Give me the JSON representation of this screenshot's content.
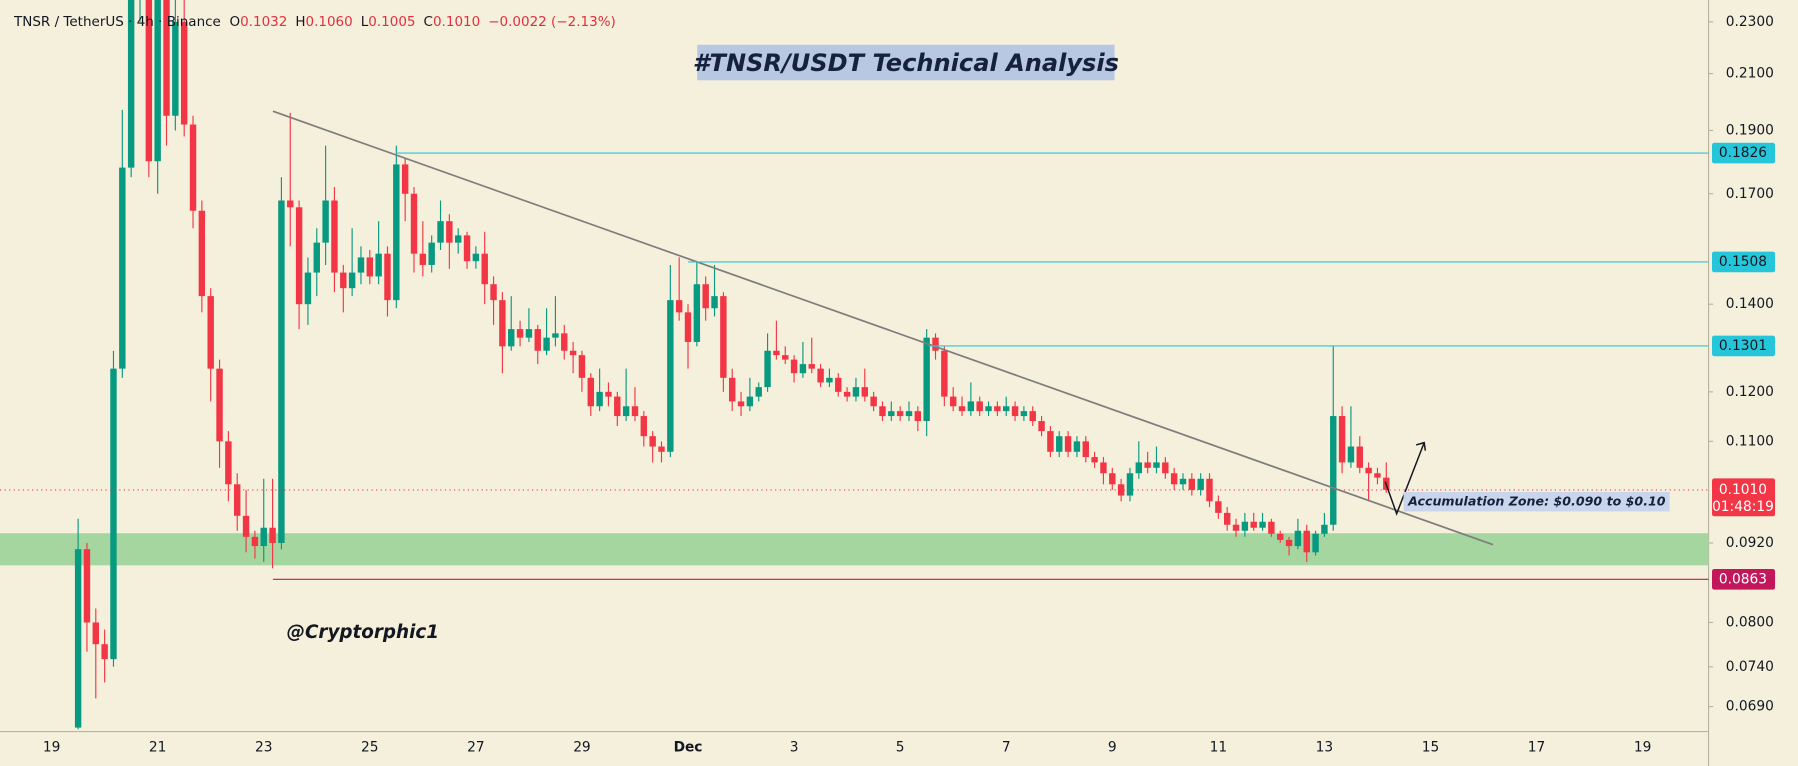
{
  "header": {
    "symbol": "TNSR / TetherUS · 4h · Binance",
    "ohlc": [
      {
        "label": "O",
        "value": "0.1032"
      },
      {
        "label": "H",
        "value": "0.1060"
      },
      {
        "label": "L",
        "value": "0.1005"
      },
      {
        "label": "C",
        "value": "0.1010"
      }
    ],
    "change": "−0.0022 (−2.13%)"
  },
  "chart_data": {
    "type": "candlestick",
    "title": "#TNSR/USDT Technical Analysis",
    "watermark": "@Cryptorphic1",
    "annotation": "Accumulation Zone: $0.090 to $0.10",
    "log_scale": true,
    "grid": false,
    "up_color": "#089981",
    "down_color": "#f23645",
    "ylim": [
      0.0663,
      0.239
    ],
    "yticks": [
      {
        "value": 0.23,
        "label": "0.2300"
      },
      {
        "value": 0.21,
        "label": "0.2100"
      },
      {
        "value": 0.19,
        "label": "0.1900"
      },
      {
        "value": 0.17,
        "label": "0.1700"
      },
      {
        "value": 0.14,
        "label": "0.1400"
      },
      {
        "value": 0.12,
        "label": "0.1200"
      },
      {
        "value": 0.11,
        "label": "0.1100"
      },
      {
        "value": 0.092,
        "label": "0.0920"
      },
      {
        "value": 0.08,
        "label": "0.0800"
      },
      {
        "value": 0.074,
        "label": "0.0740"
      },
      {
        "value": 0.069,
        "label": "0.0690"
      }
    ],
    "levels": [
      {
        "value": 0.1826,
        "color": "#26c6da"
      },
      {
        "value": 0.1508,
        "color": "#26c6da"
      },
      {
        "value": 0.1301,
        "color": "#26c6da"
      },
      {
        "value": 0.0863,
        "color": "#c2185b"
      }
    ],
    "last_price": {
      "value": 0.101,
      "label": "0.1010",
      "countdown": "01:48:19",
      "color": "#f23645"
    },
    "categories": [
      "19",
      null,
      null,
      null,
      null,
      null,
      null,
      null,
      null,
      null,
      null,
      null,
      "21",
      null,
      null,
      null,
      null,
      null,
      null,
      null,
      null,
      null,
      null,
      null,
      "23",
      null,
      null,
      null,
      null,
      null,
      null,
      null,
      null,
      null,
      null,
      null,
      "25",
      null,
      null,
      null,
      null,
      null,
      null,
      null,
      null,
      null,
      null,
      null,
      "27",
      null,
      null,
      null,
      null,
      null,
      null,
      null,
      null,
      null,
      null,
      null,
      "29",
      null,
      null,
      null,
      null,
      null,
      null,
      null,
      null,
      null,
      null,
      null,
      "Dec",
      null,
      null,
      null,
      null,
      null,
      null,
      null,
      null,
      null,
      null,
      null,
      "3",
      null,
      null,
      null,
      null,
      null,
      null,
      null,
      null,
      null,
      null,
      null,
      "5",
      null,
      null,
      null,
      null,
      null,
      null,
      null,
      null,
      null,
      null,
      null,
      "7",
      null,
      null,
      null,
      null,
      null,
      null,
      null,
      null,
      null,
      null,
      null,
      "9",
      null,
      null,
      null,
      null,
      null,
      null,
      null,
      null,
      null,
      null,
      null,
      "11",
      null,
      null,
      null,
      null,
      null,
      null,
      null,
      null,
      null,
      null,
      null,
      "13",
      null,
      null,
      null,
      null,
      null,
      null,
      null,
      null,
      null,
      null,
      null,
      "15",
      null,
      null,
      null,
      null,
      null,
      null,
      null,
      null,
      null,
      null,
      null,
      "17",
      null,
      null,
      null,
      null,
      null,
      null,
      null,
      null,
      null,
      null,
      null,
      "19",
      null,
      null,
      null,
      null,
      null,
      null
    ],
    "candles": [
      null,
      null,
      null,
      [
        0.0665,
        0.096,
        0.066,
        0.091
      ],
      [
        0.091,
        0.092,
        0.076,
        0.08
      ],
      [
        0.08,
        0.082,
        0.07,
        0.077
      ],
      [
        0.077,
        0.079,
        0.072,
        0.075
      ],
      [
        0.075,
        0.129,
        0.074,
        0.125
      ],
      [
        0.125,
        0.197,
        0.123,
        0.178
      ],
      [
        0.178,
        0.255,
        0.175,
        0.245
      ],
      [
        0.245,
        0.28,
        0.23,
        0.26
      ],
      [
        0.26,
        0.265,
        0.175,
        0.18
      ],
      [
        0.18,
        0.27,
        0.17,
        0.245
      ],
      [
        0.245,
        0.25,
        0.185,
        0.195
      ],
      [
        0.195,
        0.245,
        0.19,
        0.23
      ],
      [
        0.23,
        0.245,
        0.188,
        0.192
      ],
      [
        0.192,
        0.195,
        0.16,
        0.165
      ],
      [
        0.165,
        0.168,
        0.138,
        0.142
      ],
      [
        0.142,
        0.144,
        0.118,
        0.125
      ],
      [
        0.125,
        0.127,
        0.105,
        0.11
      ],
      [
        0.11,
        0.112,
        0.099,
        0.102
      ],
      [
        0.102,
        0.104,
        0.094,
        0.0965
      ],
      [
        0.0965,
        0.101,
        0.0905,
        0.093
      ],
      [
        0.093,
        0.094,
        0.0895,
        0.0915
      ],
      [
        0.0915,
        0.103,
        0.089,
        0.0945
      ],
      [
        0.0945,
        0.103,
        0.088,
        0.092
      ],
      [
        0.092,
        0.175,
        0.091,
        0.168
      ],
      [
        0.168,
        0.196,
        0.155,
        0.166
      ],
      [
        0.166,
        0.168,
        0.134,
        0.14
      ],
      [
        0.14,
        0.152,
        0.135,
        0.148
      ],
      [
        0.148,
        0.16,
        0.142,
        0.156
      ],
      [
        0.156,
        0.185,
        0.15,
        0.168
      ],
      [
        0.168,
        0.172,
        0.143,
        0.148
      ],
      [
        0.148,
        0.15,
        0.138,
        0.144
      ],
      [
        0.144,
        0.16,
        0.142,
        0.148
      ],
      [
        0.148,
        0.155,
        0.145,
        0.152
      ],
      [
        0.152,
        0.154,
        0.145,
        0.147
      ],
      [
        0.147,
        0.162,
        0.145,
        0.153
      ],
      [
        0.153,
        0.155,
        0.137,
        0.141
      ],
      [
        0.141,
        0.185,
        0.139,
        0.179
      ],
      [
        0.179,
        0.181,
        0.162,
        0.17
      ],
      [
        0.17,
        0.172,
        0.148,
        0.153
      ],
      [
        0.153,
        0.162,
        0.147,
        0.15
      ],
      [
        0.15,
        0.158,
        0.148,
        0.156
      ],
      [
        0.156,
        0.168,
        0.154,
        0.162
      ],
      [
        0.162,
        0.164,
        0.149,
        0.156
      ],
      [
        0.156,
        0.16,
        0.153,
        0.158
      ],
      [
        0.158,
        0.159,
        0.149,
        0.151
      ],
      [
        0.151,
        0.155,
        0.149,
        0.153
      ],
      [
        0.153,
        0.159,
        0.14,
        0.145
      ],
      [
        0.145,
        0.147,
        0.135,
        0.141
      ],
      [
        0.141,
        0.143,
        0.124,
        0.13
      ],
      [
        0.13,
        0.142,
        0.129,
        0.134
      ],
      [
        0.134,
        0.136,
        0.13,
        0.132
      ],
      [
        0.132,
        0.139,
        0.131,
        0.134
      ],
      [
        0.134,
        0.135,
        0.126,
        0.129
      ],
      [
        0.129,
        0.139,
        0.128,
        0.132
      ],
      [
        0.132,
        0.142,
        0.13,
        0.133
      ],
      [
        0.133,
        0.135,
        0.127,
        0.129
      ],
      [
        0.129,
        0.131,
        0.124,
        0.128
      ],
      [
        0.128,
        0.129,
        0.12,
        0.123
      ],
      [
        0.123,
        0.124,
        0.115,
        0.117
      ],
      [
        0.117,
        0.125,
        0.116,
        0.12
      ],
      [
        0.12,
        0.122,
        0.117,
        0.119
      ],
      [
        0.119,
        0.12,
        0.113,
        0.115
      ],
      [
        0.115,
        0.125,
        0.114,
        0.117
      ],
      [
        0.117,
        0.121,
        0.114,
        0.115
      ],
      [
        0.115,
        0.116,
        0.109,
        0.111
      ],
      [
        0.111,
        0.112,
        0.106,
        0.109
      ],
      [
        0.109,
        0.11,
        0.106,
        0.108
      ],
      [
        0.108,
        0.15,
        0.107,
        0.141
      ],
      [
        0.141,
        0.152,
        0.136,
        0.138
      ],
      [
        0.138,
        0.14,
        0.125,
        0.131
      ],
      [
        0.131,
        0.151,
        0.13,
        0.145
      ],
      [
        0.145,
        0.147,
        0.136,
        0.139
      ],
      [
        0.139,
        0.15,
        0.137,
        0.142
      ],
      [
        0.142,
        0.143,
        0.12,
        0.123
      ],
      [
        0.123,
        0.125,
        0.116,
        0.118
      ],
      [
        0.118,
        0.12,
        0.115,
        0.117
      ],
      [
        0.117,
        0.123,
        0.116,
        0.119
      ],
      [
        0.119,
        0.122,
        0.118,
        0.121
      ],
      [
        0.121,
        0.133,
        0.12,
        0.129
      ],
      [
        0.129,
        0.136,
        0.127,
        0.128
      ],
      [
        0.128,
        0.13,
        0.126,
        0.127
      ],
      [
        0.127,
        0.128,
        0.122,
        0.124
      ],
      [
        0.124,
        0.131,
        0.123,
        0.126
      ],
      [
        0.126,
        0.132,
        0.124,
        0.125
      ],
      [
        0.125,
        0.126,
        0.121,
        0.122
      ],
      [
        0.122,
        0.125,
        0.121,
        0.123
      ],
      [
        0.123,
        0.124,
        0.119,
        0.12
      ],
      [
        0.12,
        0.121,
        0.118,
        0.119
      ],
      [
        0.119,
        0.123,
        0.118,
        0.121
      ],
      [
        0.121,
        0.125,
        0.118,
        0.119
      ],
      [
        0.119,
        0.12,
        0.116,
        0.117
      ],
      [
        0.117,
        0.118,
        0.114,
        0.115
      ],
      [
        0.115,
        0.118,
        0.114,
        0.116
      ],
      [
        0.116,
        0.117,
        0.114,
        0.115
      ],
      [
        0.115,
        0.118,
        0.114,
        0.116
      ],
      [
        0.116,
        0.117,
        0.112,
        0.114
      ],
      [
        0.114,
        0.134,
        0.111,
        0.132
      ],
      [
        0.132,
        0.133,
        0.127,
        0.129
      ],
      [
        0.129,
        0.13,
        0.117,
        0.119
      ],
      [
        0.119,
        0.121,
        0.116,
        0.117
      ],
      [
        0.117,
        0.119,
        0.115,
        0.116
      ],
      [
        0.116,
        0.122,
        0.115,
        0.118
      ],
      [
        0.118,
        0.119,
        0.115,
        0.116
      ],
      [
        0.116,
        0.118,
        0.115,
        0.117
      ],
      [
        0.117,
        0.118,
        0.115,
        0.116
      ],
      [
        0.116,
        0.119,
        0.115,
        0.117
      ],
      [
        0.117,
        0.118,
        0.114,
        0.115
      ],
      [
        0.115,
        0.117,
        0.114,
        0.116
      ],
      [
        0.116,
        0.117,
        0.113,
        0.114
      ],
      [
        0.114,
        0.115,
        0.111,
        0.112
      ],
      [
        0.112,
        0.113,
        0.107,
        0.108
      ],
      [
        0.108,
        0.112,
        0.107,
        0.111
      ],
      [
        0.111,
        0.112,
        0.107,
        0.108
      ],
      [
        0.108,
        0.111,
        0.107,
        0.11
      ],
      [
        0.11,
        0.111,
        0.106,
        0.107
      ],
      [
        0.107,
        0.108,
        0.105,
        0.106
      ],
      [
        0.106,
        0.107,
        0.102,
        0.104
      ],
      [
        0.104,
        0.105,
        0.101,
        0.102
      ],
      [
        0.102,
        0.103,
        0.099,
        0.1
      ],
      [
        0.1,
        0.105,
        0.099,
        0.104
      ],
      [
        0.104,
        0.11,
        0.103,
        0.106
      ],
      [
        0.106,
        0.108,
        0.104,
        0.105
      ],
      [
        0.105,
        0.109,
        0.104,
        0.106
      ],
      [
        0.106,
        0.107,
        0.103,
        0.104
      ],
      [
        0.104,
        0.105,
        0.101,
        0.102
      ],
      [
        0.102,
        0.104,
        0.101,
        0.103
      ],
      [
        0.103,
        0.104,
        0.1,
        0.101
      ],
      [
        0.101,
        0.104,
        0.1,
        0.103
      ],
      [
        0.103,
        0.104,
        0.098,
        0.099
      ],
      [
        0.099,
        0.1,
        0.096,
        0.097
      ],
      [
        0.097,
        0.098,
        0.094,
        0.095
      ],
      [
        0.095,
        0.096,
        0.093,
        0.094
      ],
      [
        0.094,
        0.097,
        0.093,
        0.0955
      ],
      [
        0.0955,
        0.097,
        0.094,
        0.0945
      ],
      [
        0.0945,
        0.097,
        0.094,
        0.0955
      ],
      [
        0.0955,
        0.096,
        0.093,
        0.0935
      ],
      [
        0.0935,
        0.094,
        0.092,
        0.0925
      ],
      [
        0.0925,
        0.093,
        0.09,
        0.0915
      ],
      [
        0.0915,
        0.096,
        0.091,
        0.094
      ],
      [
        0.094,
        0.095,
        0.089,
        0.0905
      ],
      [
        0.0905,
        0.094,
        0.09,
        0.0935
      ],
      [
        0.0935,
        0.097,
        0.093,
        0.095
      ],
      [
        0.095,
        0.13,
        0.094,
        0.115
      ],
      [
        0.115,
        0.117,
        0.104,
        0.106
      ],
      [
        0.106,
        0.117,
        0.105,
        0.109
      ],
      [
        0.109,
        0.111,
        0.104,
        0.105
      ],
      [
        0.105,
        0.106,
        0.099,
        0.104
      ],
      [
        0.104,
        0.105,
        0.102,
        0.1032
      ],
      [
        0.1032,
        0.106,
        0.1005,
        0.101
      ],
      null,
      null,
      null,
      null,
      null,
      null,
      null,
      null,
      null,
      null,
      null,
      null,
      null,
      null,
      null,
      null,
      null,
      null,
      null,
      null,
      null,
      null,
      null,
      null,
      null,
      null,
      null,
      null,
      null,
      null,
      null,
      null,
      null,
      null,
      null
    ]
  }
}
